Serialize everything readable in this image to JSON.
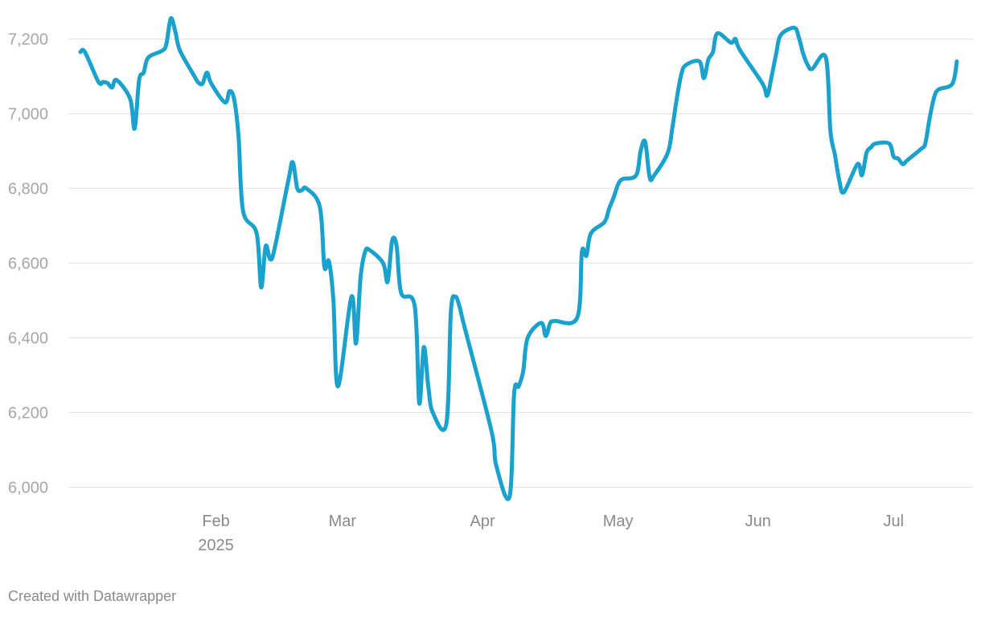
{
  "chart_data": {
    "type": "line",
    "title": "",
    "xlabel": "",
    "ylabel": "",
    "ylim": [
      5960,
      7260
    ],
    "yticks": [
      {
        "value": 6000,
        "label": "6,000"
      },
      {
        "value": 6200,
        "label": "6,200"
      },
      {
        "value": 6400,
        "label": "6,400"
      },
      {
        "value": 6600,
        "label": "6,600"
      },
      {
        "value": 6800,
        "label": "6,800"
      },
      {
        "value": 7000,
        "label": "7,000"
      },
      {
        "value": 7200,
        "label": "7,200"
      }
    ],
    "xlim": [
      "2025-01-02",
      "2025-07-18"
    ],
    "xticks": [
      {
        "date": "2025-02-01",
        "label": "Feb",
        "sublabel": "2025"
      },
      {
        "date": "2025-03-01",
        "label": "Mar",
        "sublabel": ""
      },
      {
        "date": "2025-04-01",
        "label": "Apr",
        "sublabel": ""
      },
      {
        "date": "2025-05-01",
        "label": "May",
        "sublabel": ""
      },
      {
        "date": "2025-06-01",
        "label": "Jun",
        "sublabel": ""
      },
      {
        "date": "2025-07-01",
        "label": "Jul",
        "sublabel": ""
      }
    ],
    "grid": true,
    "legend": "none",
    "series": [
      {
        "color": "#1aa1cd",
        "points": [
          [
            "2025-01-02",
            7165
          ],
          [
            "2025-01-03",
            7165
          ],
          [
            "2025-01-06",
            7085
          ],
          [
            "2025-01-07",
            7085
          ],
          [
            "2025-01-08",
            7082
          ],
          [
            "2025-01-09",
            7070
          ],
          [
            "2025-01-10",
            7090
          ],
          [
            "2025-01-13",
            7040
          ],
          [
            "2025-01-14",
            6960
          ],
          [
            "2025-01-15",
            7090
          ],
          [
            "2025-01-16",
            7110
          ],
          [
            "2025-01-17",
            7150
          ],
          [
            "2025-01-20",
            7168
          ],
          [
            "2025-01-21",
            7185
          ],
          [
            "2025-01-22",
            7255
          ],
          [
            "2025-01-23",
            7220
          ],
          [
            "2025-01-24",
            7170
          ],
          [
            "2025-01-27",
            7105
          ],
          [
            "2025-01-28",
            7085
          ],
          [
            "2025-01-29",
            7080
          ],
          [
            "2025-01-30",
            7110
          ],
          [
            "2025-01-31",
            7080
          ],
          [
            "2025-02-03",
            7030
          ],
          [
            "2025-02-04",
            7060
          ],
          [
            "2025-02-05",
            7040
          ],
          [
            "2025-02-06",
            6940
          ],
          [
            "2025-02-07",
            6740
          ],
          [
            "2025-02-10",
            6680
          ],
          [
            "2025-02-11",
            6535
          ],
          [
            "2025-02-12",
            6645
          ],
          [
            "2025-02-13",
            6610
          ],
          [
            "2025-02-14",
            6640
          ],
          [
            "2025-02-17",
            6820
          ],
          [
            "2025-02-18",
            6870
          ],
          [
            "2025-02-19",
            6800
          ],
          [
            "2025-02-20",
            6795
          ],
          [
            "2025-02-21",
            6800
          ],
          [
            "2025-02-24",
            6750
          ],
          [
            "2025-02-25",
            6590
          ],
          [
            "2025-02-26",
            6605
          ],
          [
            "2025-02-27",
            6500
          ],
          [
            "2025-02-28",
            6270
          ],
          [
            "2025-03-03",
            6510
          ],
          [
            "2025-03-04",
            6385
          ],
          [
            "2025-03-05",
            6560
          ],
          [
            "2025-03-06",
            6630
          ],
          [
            "2025-03-07",
            6635
          ],
          [
            "2025-03-10",
            6600
          ],
          [
            "2025-03-11",
            6550
          ],
          [
            "2025-03-12",
            6660
          ],
          [
            "2025-03-13",
            6645
          ],
          [
            "2025-03-14",
            6520
          ],
          [
            "2025-03-17",
            6485
          ],
          [
            "2025-03-18",
            6225
          ],
          [
            "2025-03-19",
            6375
          ],
          [
            "2025-03-20",
            6270
          ],
          [
            "2025-03-21",
            6200
          ],
          [
            "2025-03-24",
            6170
          ],
          [
            "2025-03-25",
            6470
          ],
          [
            "2025-03-26",
            6510
          ],
          [
            "2025-03-27",
            6480
          ],
          [
            "2025-03-28",
            6430
          ],
          [
            "2025-04-03",
            6150
          ],
          [
            "2025-04-04",
            6060
          ],
          [
            "2025-04-07",
            5975
          ],
          [
            "2025-04-08",
            6250
          ],
          [
            "2025-04-09",
            6270
          ],
          [
            "2025-04-10",
            6310
          ],
          [
            "2025-04-11",
            6400
          ],
          [
            "2025-04-14",
            6440
          ],
          [
            "2025-04-15",
            6405
          ],
          [
            "2025-04-16",
            6440
          ],
          [
            "2025-04-17",
            6445
          ],
          [
            "2025-04-22",
            6455
          ],
          [
            "2025-04-23",
            6630
          ],
          [
            "2025-04-24",
            6620
          ],
          [
            "2025-04-25",
            6680
          ],
          [
            "2025-04-28",
            6710
          ],
          [
            "2025-04-29",
            6745
          ],
          [
            "2025-04-30",
            6775
          ],
          [
            "2025-05-01",
            6810
          ],
          [
            "2025-05-02",
            6825
          ],
          [
            "2025-05-05",
            6835
          ],
          [
            "2025-05-06",
            6900
          ],
          [
            "2025-05-07",
            6925
          ],
          [
            "2025-05-08",
            6830
          ],
          [
            "2025-05-09",
            6835
          ],
          [
            "2025-05-12",
            6895
          ],
          [
            "2025-05-13",
            6960
          ],
          [
            "2025-05-14",
            7040
          ],
          [
            "2025-05-15",
            7105
          ],
          [
            "2025-05-16",
            7130
          ],
          [
            "2025-05-19",
            7140
          ],
          [
            "2025-05-20",
            7095
          ],
          [
            "2025-05-21",
            7145
          ],
          [
            "2025-05-22",
            7165
          ],
          [
            "2025-05-23",
            7215
          ],
          [
            "2025-05-26",
            7190
          ],
          [
            "2025-05-27",
            7200
          ],
          [
            "2025-05-28",
            7170
          ],
          [
            "2025-06-02",
            7080
          ],
          [
            "2025-06-03",
            7048
          ],
          [
            "2025-06-04",
            7100
          ],
          [
            "2025-06-05",
            7160
          ],
          [
            "2025-06-06",
            7210
          ],
          [
            "2025-06-09",
            7230
          ],
          [
            "2025-06-10",
            7205
          ],
          [
            "2025-06-11",
            7160
          ],
          [
            "2025-06-12",
            7130
          ],
          [
            "2025-06-13",
            7120
          ],
          [
            "2025-06-16",
            7150
          ],
          [
            "2025-06-17",
            6955
          ],
          [
            "2025-06-18",
            6890
          ],
          [
            "2025-06-19",
            6820
          ],
          [
            "2025-06-20",
            6790
          ],
          [
            "2025-06-23",
            6865
          ],
          [
            "2025-06-24",
            6835
          ],
          [
            "2025-06-25",
            6895
          ],
          [
            "2025-06-26",
            6910
          ],
          [
            "2025-06-27",
            6920
          ],
          [
            "2025-06-30",
            6920
          ],
          [
            "2025-07-01",
            6885
          ],
          [
            "2025-07-02",
            6880
          ],
          [
            "2025-07-03",
            6865
          ],
          [
            "2025-07-04",
            6875
          ],
          [
            "2025-07-07",
            6905
          ],
          [
            "2025-07-08",
            6920
          ],
          [
            "2025-07-09",
            6990
          ],
          [
            "2025-07-10",
            7045
          ],
          [
            "2025-07-11",
            7065
          ],
          [
            "2025-07-14",
            7080
          ],
          [
            "2025-07-15",
            7140
          ]
        ]
      }
    ]
  },
  "footer": {
    "credit": "Created with Datawrapper"
  }
}
